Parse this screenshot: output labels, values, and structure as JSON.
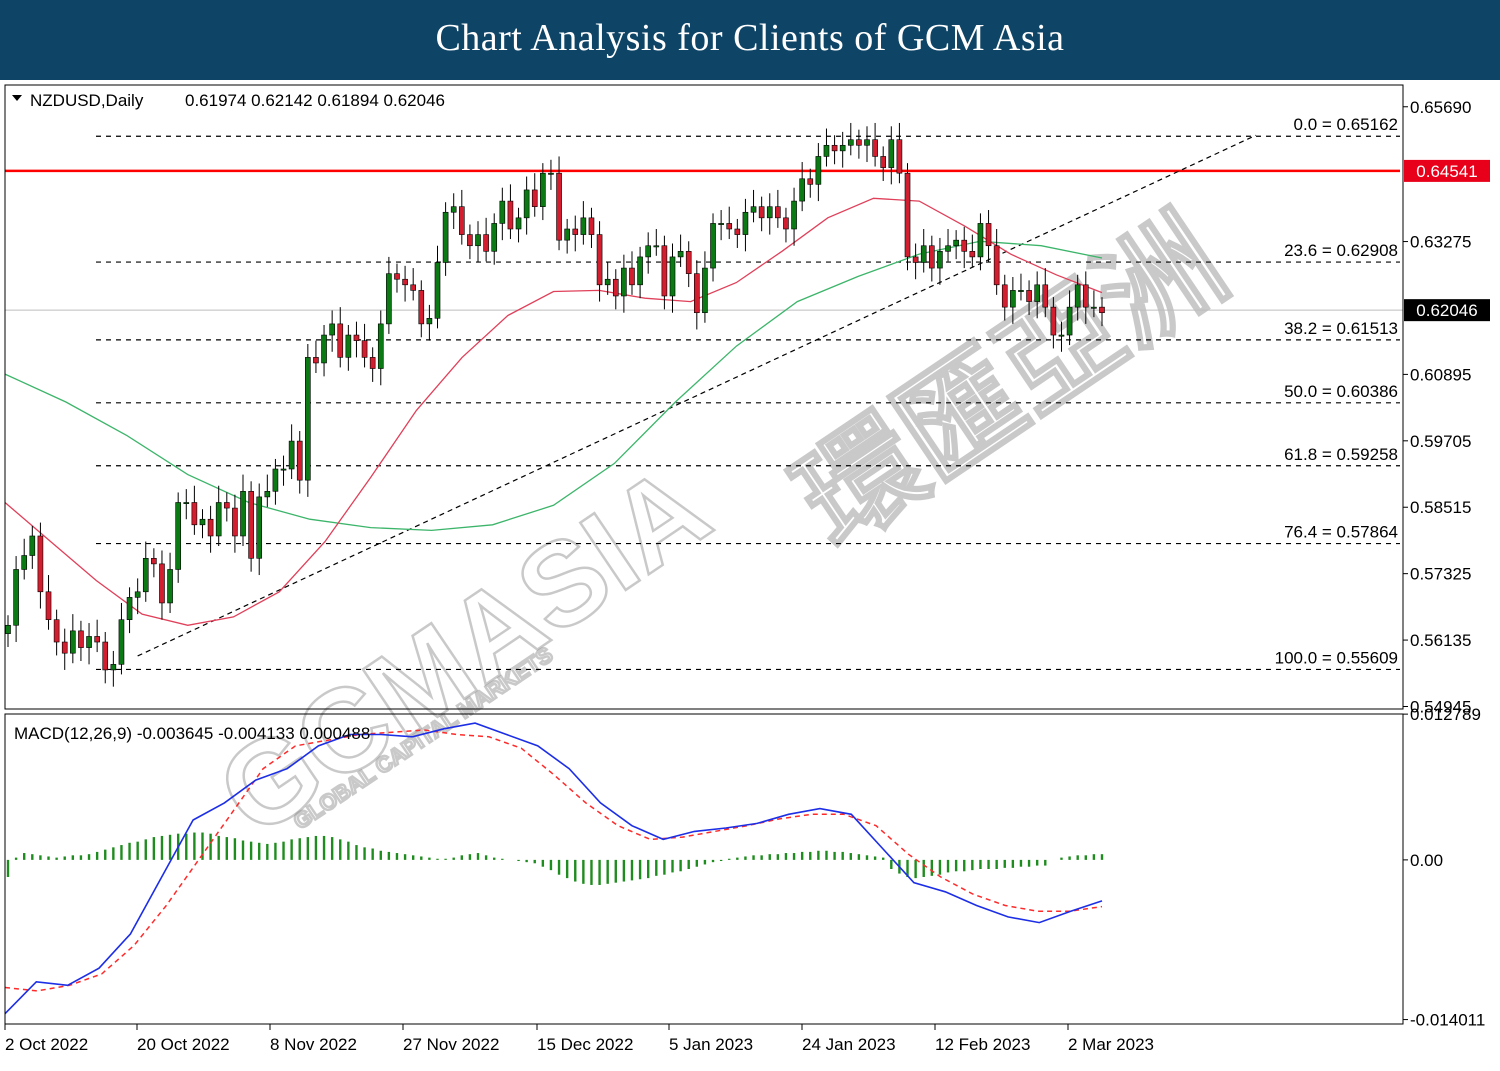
{
  "banner": {
    "title": "Chart Analysis for Clients of GCM Asia"
  },
  "watermark": {
    "brand": "GCMASIA",
    "chinese": "環匯亞洲",
    "sub": "GLOBAL CAPITAL MARKETS"
  },
  "colors": {
    "banner": "#0e4466",
    "bull": "#0b7a14",
    "bear": "#d21e2e",
    "ma_fast": "#e0405a",
    "ma_slow": "#3cb56a",
    "resistance": "#ff0000",
    "macd": "#1c2ee6",
    "signal": "#ff2a2a",
    "histogram": "#1f8c1f"
  },
  "chart_data": [
    {
      "type": "candlestick",
      "symbol_label": "NZDUSD,Daily",
      "ohlc_label": "0.61974 0.62142 0.61894 0.62046",
      "x_ticks": [
        "2 Oct 2022",
        "20 Oct 2022",
        "8 Nov 2022",
        "27 Nov 2022",
        "15 Dec 2022",
        "5 Jan 2023",
        "24 Jan 2023",
        "12 Feb 2023",
        "2 Mar 2023"
      ],
      "y_ticks": [
        "0.65690",
        "0.63275",
        "0.60895",
        "0.59705",
        "0.58515",
        "0.57325",
        "0.56135",
        "0.54945"
      ],
      "ylim": [
        0.549,
        0.6608
      ],
      "current_price": "0.62046",
      "resistance": {
        "value": 0.64541,
        "label": "0.64541"
      },
      "fibonacci": [
        {
          "label": "0.0 = 0.65162",
          "value": 0.65162
        },
        {
          "label": "23.6 = 0.62908",
          "value": 0.62908
        },
        {
          "label": "38.2 = 0.61513",
          "value": 0.61513
        },
        {
          "label": "50.0 = 0.60386",
          "value": 0.60386
        },
        {
          "label": "61.8 = 0.59258",
          "value": 0.59258
        },
        {
          "label": "76.4 = 0.57864",
          "value": 0.57864
        },
        {
          "label": "100.0 = 0.55609",
          "value": 0.55609
        }
      ],
      "trendline": [
        [
          16,
          0.5585
        ],
        [
          154,
          0.6518
        ]
      ],
      "close_series": [
        0.564,
        0.574,
        0.5765,
        0.58,
        0.57,
        0.565,
        0.561,
        0.559,
        0.563,
        0.56,
        0.562,
        0.561,
        0.556,
        0.557,
        0.565,
        0.569,
        0.57,
        0.576,
        0.575,
        0.568,
        0.574,
        0.586,
        0.586,
        0.582,
        0.583,
        0.58,
        0.586,
        0.585,
        0.58,
        0.588,
        0.576,
        0.587,
        0.588,
        0.592,
        0.592,
        0.597,
        0.59,
        0.612,
        0.611,
        0.616,
        0.618,
        0.612,
        0.616,
        0.615,
        0.612,
        0.61,
        0.618,
        0.627,
        0.626,
        0.625,
        0.624,
        0.618,
        0.619,
        0.629,
        0.638,
        0.639,
        0.634,
        0.632,
        0.634,
        0.631,
        0.636,
        0.64,
        0.635,
        0.637,
        0.642,
        0.639,
        0.645,
        0.645,
        0.633,
        0.635,
        0.634,
        0.637,
        0.634,
        0.625,
        0.626,
        0.623,
        0.628,
        0.625,
        0.63,
        0.632,
        0.632,
        0.623,
        0.63,
        0.631,
        0.627,
        0.62,
        0.628,
        0.636,
        0.636,
        0.635,
        0.634,
        0.638,
        0.639,
        0.637,
        0.639,
        0.637,
        0.635,
        0.64,
        0.644,
        0.643,
        0.648,
        0.65,
        0.649,
        0.65,
        0.651,
        0.65,
        0.651,
        0.648,
        0.646,
        0.651,
        0.645,
        0.63,
        0.629,
        0.632,
        0.628,
        0.631,
        0.632,
        0.633,
        0.631,
        0.63,
        0.636,
        0.632,
        0.625,
        0.621,
        0.624,
        0.624,
        0.622,
        0.625,
        0.621,
        0.616,
        0.616,
        0.621,
        0.625,
        0.621,
        0.621,
        0.62
      ],
      "ma_fast": {
        "from": 0,
        "points": [
          0.586,
          0.579,
          0.572,
          0.566,
          0.564,
          0.5655,
          0.57,
          0.579,
          0.5905,
          0.6025,
          0.612,
          0.6195,
          0.6238,
          0.624,
          0.6226,
          0.622,
          0.6254,
          0.631,
          0.637,
          0.6405,
          0.64,
          0.6355,
          0.6305,
          0.6268,
          0.6236
        ]
      },
      "ma_slow": {
        "from": 0,
        "points": [
          0.609,
          0.604,
          0.598,
          0.591,
          0.586,
          0.583,
          0.5815,
          0.581,
          0.582,
          0.5855,
          0.593,
          0.604,
          0.614,
          0.622,
          0.6265,
          0.6305,
          0.6328,
          0.632,
          0.6298
        ]
      }
    },
    {
      "type": "macd",
      "label": "MACD(12,26,9) -0.003645 -0.004133 0.000488",
      "y_ticks": [
        "0.012789",
        "0.00",
        "-0.014011"
      ],
      "ylim": [
        -0.0144,
        0.0128
      ],
      "series": [
        {
          "values": [
            -0.0135,
            -0.0107,
            -0.011,
            -0.0095,
            -0.0065,
            -0.0015,
            0.0035,
            0.005,
            0.007,
            0.008,
            0.01,
            0.011,
            0.011,
            0.0108,
            0.0115,
            0.012,
            0.011,
            0.01,
            0.008,
            0.005,
            0.003,
            0.0018,
            0.0025,
            0.0028,
            0.0032,
            0.004,
            0.0045,
            0.004,
            0.001,
            -0.002,
            -0.0028,
            -0.004,
            -0.005,
            -0.0055,
            -0.0045,
            -0.0036
          ]
        },
        {
          "values": [
            -0.0112,
            -0.0115,
            -0.011,
            -0.01,
            -0.0075,
            -0.004,
            0.0,
            0.004,
            0.008,
            0.01,
            0.0105,
            0.011,
            0.0112,
            0.0114,
            0.011,
            0.0108,
            0.0098,
            0.0075,
            0.005,
            0.003,
            0.0018,
            0.002,
            0.0025,
            0.003,
            0.0036,
            0.004,
            0.004,
            0.003,
            0.0005,
            -0.0015,
            -0.003,
            -0.004,
            -0.0045,
            -0.0045,
            -0.0041
          ]
        }
      ],
      "histogram": [
        -0.0015,
        0.0002,
        0.0006,
        0.0005,
        0.0004,
        0.0003,
        0.0002,
        0.0003,
        0.0004,
        0.0004,
        0.0005,
        0.0007,
        0.0009,
        0.0011,
        0.0013,
        0.0015,
        0.0016,
        0.0018,
        0.002,
        0.0021,
        0.0022,
        0.0023,
        0.0023,
        0.0024,
        0.0024,
        0.0023,
        0.0021,
        0.002,
        0.0019,
        0.0017,
        0.0016,
        0.0015,
        0.0014,
        0.0015,
        0.0016,
        0.0018,
        0.0019,
        0.002,
        0.0021,
        0.0021,
        0.002,
        0.0018,
        0.0016,
        0.0013,
        0.0011,
        0.001,
        0.0008,
        0.0007,
        0.0006,
        0.0005,
        0.0004,
        0.0003,
        0.0002,
        0.0001,
        0.0001,
        0.0002,
        0.0004,
        0.0005,
        0.0006,
        0.0004,
        0.0002,
        0.0001,
        0.0,
        -0.0001,
        -0.0002,
        -0.0003,
        -0.0006,
        -0.0009,
        -0.0013,
        -0.0016,
        -0.0019,
        -0.0021,
        -0.0022,
        -0.0022,
        -0.0021,
        -0.002,
        -0.0019,
        -0.0018,
        -0.0017,
        -0.0016,
        -0.0014,
        -0.0013,
        -0.0011,
        -0.001,
        -0.0008,
        -0.0006,
        -0.0004,
        -0.0002,
        -0.0001,
        0.0001,
        0.0002,
        0.0003,
        0.0004,
        0.0004,
        0.0005,
        0.0005,
        0.0006,
        0.0006,
        0.0007,
        0.0007,
        0.0008,
        0.0008,
        0.0007,
        0.0007,
        0.0006,
        0.0005,
        0.0004,
        0.0003,
        0.0002,
        -0.0008,
        -0.0012,
        -0.0015,
        -0.0016,
        -0.0015,
        -0.0014,
        -0.0013,
        -0.0011,
        -0.001,
        -0.001,
        -0.0009,
        -0.0008,
        -0.0008,
        -0.0008,
        -0.0007,
        -0.0007,
        -0.0006,
        -0.0006,
        -0.0005,
        -0.0005,
        0.0,
        0.0002,
        0.0003,
        0.0004,
        0.0004,
        0.0005,
        0.0005
      ]
    }
  ]
}
